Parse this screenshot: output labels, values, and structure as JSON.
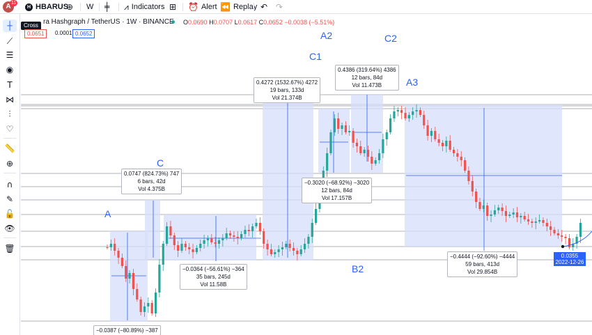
{
  "topbar": {
    "avatar_letter": "A",
    "notification_count": "11",
    "symbol": "HBARUS",
    "symbol_icon": "H",
    "interval": "W",
    "indicators_label": "Indicators",
    "alert_label": "Alert",
    "replay_label": "Replay"
  },
  "left_toolbar": {
    "tooltip": "Cross"
  },
  "legend": {
    "title": "ra Hashgraph / TetherUS · 1W · BINANCE",
    "open_key": "O",
    "open": "0.0690",
    "high_key": "H",
    "high": "0.0707",
    "low_key": "L",
    "low": "0.0617",
    "close_key": "C",
    "close": "0.0652",
    "change": "−0.0038 (−5.51%)",
    "sell_price": "0.0651",
    "spread": "0.0001",
    "buy_price": "0.0652"
  },
  "wave_labels": {
    "A": "A",
    "C": "C",
    "C1": "C1",
    "A2": "A2",
    "C2": "C2",
    "A3": "A3",
    "B2": "B2"
  },
  "measure_boxes": {
    "a_drop": {
      "line1": "−0.0387 (−80.89%) −387"
    },
    "c_rise": {
      "line1": "0.0747 (824.73%) 747",
      "line2": "6 bars, 42d",
      "line3": "Vol 4.375B"
    },
    "b_drop": {
      "line1": "−0.0364 (−56.61%) −364",
      "line2": "35 bars, 245d",
      "line3": "Vol 11.58B"
    },
    "c1_rise": {
      "line1": "0.4272 (1532.67%) 4272",
      "line2": "19 bars, 133d",
      "line3": "Vol 21.374B"
    },
    "a2_drop": {
      "line1": "−0.3020 (−68.92%) −3020",
      "line2": "12 bars, 84d",
      "line3": "Vol 17.157B"
    },
    "c2_rise": {
      "line1": "0.4386 (319.64%) 4386",
      "line2": "12 bars, 84d",
      "line3": "Vol 11.473B"
    },
    "a3_drop": {
      "line1": "−0.4444 (−92.60%) −4444",
      "line2": "59 bars, 413d",
      "line3": "Vol 29.854B"
    }
  },
  "price_tag": {
    "price": "0.0355",
    "date": "2022-12-26"
  },
  "colors": {
    "up": "#26a69a",
    "down": "#ef5350",
    "range_fill": "#d5defa",
    "accent": "#2962ff"
  }
}
